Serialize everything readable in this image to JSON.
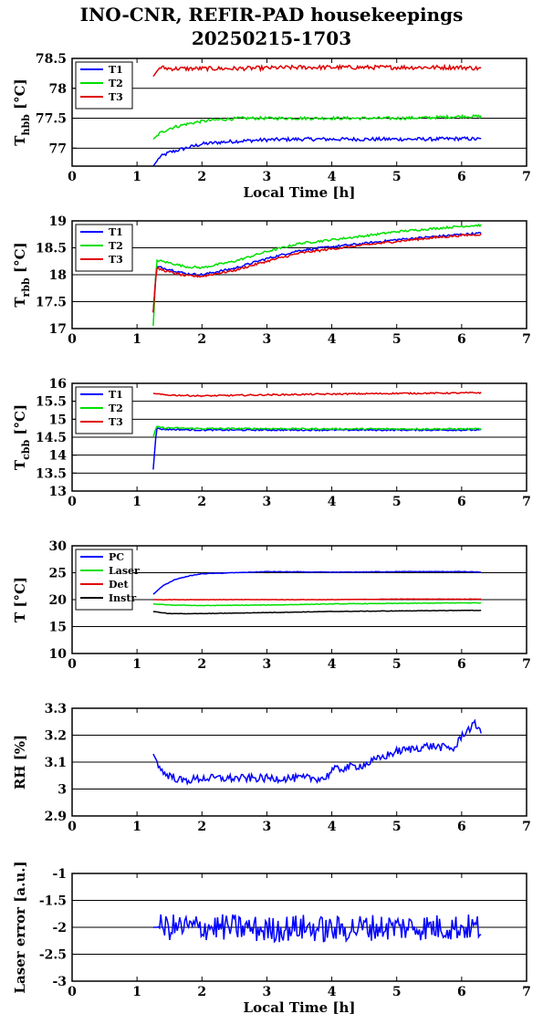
{
  "title": "INO-CNR, REFIR-PAD housekeepings",
  "subtitle": "20250215-1703",
  "chart_data": [
    {
      "type": "line",
      "ylabel_main": "T",
      "ylabel_sub": "hbb",
      "ylabel_unit": " [°C]",
      "xlabel": "Local Time [h]",
      "xlim": [
        0,
        7
      ],
      "xticks": [
        0,
        1,
        2,
        3,
        4,
        5,
        6,
        7
      ],
      "ylim": [
        76.7,
        78.5
      ],
      "yticks": [
        77,
        77.5,
        78,
        78.5
      ],
      "legend": "top-left",
      "series": [
        {
          "name": "T1",
          "color": "#0000ff",
          "x": [
            1.25,
            1.35,
            1.5,
            1.75,
            2.0,
            2.3,
            2.6,
            3.0,
            3.5,
            4.0,
            4.5,
            5.0,
            5.5,
            6.0,
            6.3
          ],
          "y": [
            76.7,
            76.85,
            76.93,
            77.0,
            77.07,
            77.1,
            77.12,
            77.14,
            77.15,
            77.15,
            77.15,
            77.15,
            77.15,
            77.16,
            77.15
          ],
          "noise": 0.03
        },
        {
          "name": "T2",
          "color": "#00e000",
          "x": [
            1.25,
            1.35,
            1.5,
            1.75,
            2.0,
            2.3,
            2.6,
            3.0,
            3.5,
            4.0,
            4.5,
            5.0,
            5.5,
            6.0,
            6.3
          ],
          "y": [
            77.15,
            77.25,
            77.33,
            77.4,
            77.45,
            77.48,
            77.5,
            77.5,
            77.5,
            77.5,
            77.5,
            77.5,
            77.51,
            77.53,
            77.53
          ],
          "noise": 0.025
        },
        {
          "name": "T3",
          "color": "#e00000",
          "x": [
            1.25,
            1.35,
            1.5,
            2.0,
            2.5,
            3.0,
            3.5,
            4.0,
            4.5,
            5.0,
            5.5,
            6.0,
            6.3
          ],
          "y": [
            78.2,
            78.35,
            78.33,
            78.33,
            78.33,
            78.34,
            78.35,
            78.35,
            78.35,
            78.35,
            78.35,
            78.35,
            78.33
          ],
          "noise": 0.035
        }
      ]
    },
    {
      "type": "line",
      "ylabel_main": "T",
      "ylabel_sub": "rbb",
      "ylabel_unit": " [°C]",
      "xlabel": "",
      "xlim": [
        0,
        7
      ],
      "xticks": [
        0,
        1,
        2,
        3,
        4,
        5,
        6,
        7
      ],
      "ylim": [
        17,
        19
      ],
      "yticks": [
        17,
        17.5,
        18,
        18.5,
        19
      ],
      "legend": "top-left",
      "series": [
        {
          "name": "T1",
          "color": "#0000ff",
          "x": [
            1.25,
            1.3,
            1.5,
            1.75,
            2.0,
            2.5,
            3.0,
            3.5,
            4.0,
            4.5,
            5.0,
            5.5,
            6.0,
            6.3
          ],
          "y": [
            17.3,
            18.15,
            18.1,
            18.02,
            18.0,
            18.12,
            18.3,
            18.45,
            18.52,
            18.58,
            18.65,
            18.7,
            18.75,
            18.77
          ],
          "noise": 0.02
        },
        {
          "name": "T2",
          "color": "#00e000",
          "x": [
            1.25,
            1.3,
            1.5,
            1.75,
            2.0,
            2.5,
            3.0,
            3.5,
            4.0,
            4.5,
            5.0,
            5.5,
            6.0,
            6.3
          ],
          "y": [
            17.05,
            18.27,
            18.22,
            18.15,
            18.13,
            18.25,
            18.43,
            18.58,
            18.65,
            18.72,
            18.8,
            18.85,
            18.9,
            18.92
          ],
          "noise": 0.02
        },
        {
          "name": "T3",
          "color": "#e00000",
          "x": [
            1.25,
            1.3,
            1.5,
            1.75,
            2.0,
            2.5,
            3.0,
            3.5,
            4.0,
            4.5,
            5.0,
            5.5,
            6.0,
            6.3
          ],
          "y": [
            17.3,
            18.12,
            18.05,
            17.98,
            17.97,
            18.08,
            18.25,
            18.4,
            18.48,
            18.55,
            18.62,
            18.68,
            18.73,
            18.75
          ],
          "noise": 0.02
        }
      ]
    },
    {
      "type": "line",
      "ylabel_main": "T",
      "ylabel_sub": "cbb",
      "ylabel_unit": " [°C]",
      "xlabel": "",
      "xlim": [
        0,
        7
      ],
      "xticks": [
        0,
        1,
        2,
        3,
        4,
        5,
        6,
        7
      ],
      "ylim": [
        13,
        16
      ],
      "yticks": [
        13,
        13.5,
        14,
        14.5,
        15,
        15.5,
        16
      ],
      "legend": "top-left",
      "series": [
        {
          "name": "T1",
          "color": "#0000ff",
          "x": [
            1.25,
            1.3,
            1.4,
            2.0,
            3.0,
            4.0,
            5.0,
            6.0,
            6.3
          ],
          "y": [
            13.6,
            14.75,
            14.72,
            14.7,
            14.7,
            14.7,
            14.7,
            14.7,
            14.7
          ],
          "noise": 0.02
        },
        {
          "name": "T2",
          "color": "#00e000",
          "x": [
            1.25,
            1.3,
            1.4,
            2.0,
            3.0,
            4.0,
            5.0,
            6.0,
            6.3
          ],
          "y": [
            14.5,
            14.8,
            14.76,
            14.74,
            14.74,
            14.73,
            14.73,
            14.73,
            14.73
          ],
          "noise": 0.02
        },
        {
          "name": "T3",
          "color": "#e00000",
          "x": [
            1.25,
            1.4,
            2.0,
            3.0,
            4.0,
            5.0,
            6.0,
            6.3
          ],
          "y": [
            15.72,
            15.68,
            15.65,
            15.68,
            15.7,
            15.72,
            15.73,
            15.74
          ],
          "noise": 0.02
        }
      ]
    },
    {
      "type": "line",
      "ylabel_main": "T [°C]",
      "ylabel_sub": "",
      "ylabel_unit": "",
      "xlabel": "",
      "xlim": [
        0,
        7
      ],
      "xticks": [
        0,
        1,
        2,
        3,
        4,
        5,
        6,
        7
      ],
      "ylim": [
        10,
        30
      ],
      "yticks": [
        10,
        15,
        20,
        25,
        30
      ],
      "legend": "top-left",
      "series": [
        {
          "name": "PC",
          "color": "#0000ff",
          "x": [
            1.25,
            1.4,
            1.6,
            1.8,
            2.0,
            2.5,
            3.0,
            4.0,
            5.0,
            6.0,
            6.3
          ],
          "y": [
            21.0,
            22.6,
            23.8,
            24.4,
            24.8,
            25.0,
            25.2,
            25.1,
            25.2,
            25.2,
            25.1
          ],
          "noise": 0.05
        },
        {
          "name": "Laser",
          "color": "#00e000",
          "x": [
            1.25,
            1.5,
            2.0,
            3.0,
            4.0,
            5.0,
            6.0,
            6.3
          ],
          "y": [
            19.2,
            19.0,
            18.9,
            19.0,
            19.2,
            19.3,
            19.4,
            19.4
          ],
          "noise": 0.05
        },
        {
          "name": "Det",
          "color": "#e00000",
          "x": [
            1.25,
            1.5,
            2.0,
            3.0,
            4.0,
            5.0,
            6.0,
            6.3
          ],
          "y": [
            20.0,
            20.0,
            20.0,
            20.0,
            20.0,
            20.1,
            20.1,
            20.1
          ],
          "noise": 0.03
        },
        {
          "name": "Instr",
          "color": "#000000",
          "x": [
            1.25,
            1.5,
            2.0,
            3.0,
            4.0,
            5.0,
            6.0,
            6.3
          ],
          "y": [
            17.8,
            17.4,
            17.4,
            17.6,
            17.8,
            17.9,
            18.0,
            18.0
          ],
          "noise": 0.04
        }
      ]
    },
    {
      "type": "line",
      "ylabel_main": "RH [%]",
      "ylabel_sub": "",
      "ylabel_unit": "",
      "xlabel": "",
      "xlim": [
        0,
        7
      ],
      "xticks": [
        0,
        1,
        2,
        3,
        4,
        5,
        6,
        7
      ],
      "ylim": [
        2.9,
        3.3
      ],
      "yticks": [
        2.9,
        3,
        3.1,
        3.2,
        3.3
      ],
      "legend": "none",
      "series": [
        {
          "name": "",
          "color": "#0000ff",
          "x": [
            1.25,
            1.4,
            1.7,
            2.0,
            2.5,
            3.0,
            3.5,
            3.9,
            4.0,
            4.5,
            5.0,
            5.5,
            5.9,
            6.0,
            6.2,
            6.3
          ],
          "y": [
            3.13,
            3.06,
            3.03,
            3.04,
            3.04,
            3.04,
            3.04,
            3.04,
            3.07,
            3.09,
            3.14,
            3.16,
            3.15,
            3.2,
            3.24,
            3.22
          ],
          "noise": 0.015
        }
      ]
    },
    {
      "type": "line",
      "ylabel_main": "Laser error [a.u.]",
      "ylabel_sub": "",
      "ylabel_unit": "",
      "xlabel": "Local Time [h]",
      "xlim": [
        0,
        7
      ],
      "xticks": [
        0,
        1,
        2,
        3,
        4,
        5,
        6,
        7
      ],
      "ylim": [
        -3,
        -1
      ],
      "yticks": [
        -3,
        -2.5,
        -2,
        -1.5,
        -1
      ],
      "legend": "none",
      "series": [
        {
          "name": "",
          "color": "#0000ff",
          "x": [
            1.25,
            2.0,
            2.5,
            3.0,
            3.5,
            4.0,
            4.5,
            5.0,
            5.5,
            6.0,
            6.3
          ],
          "y": [
            -2.0,
            -2.0,
            -2.0,
            -2.05,
            -2.0,
            -2.05,
            -2.0,
            -2.0,
            -2.0,
            -2.0,
            -2.0
          ],
          "noise": 0.25
        }
      ]
    }
  ]
}
